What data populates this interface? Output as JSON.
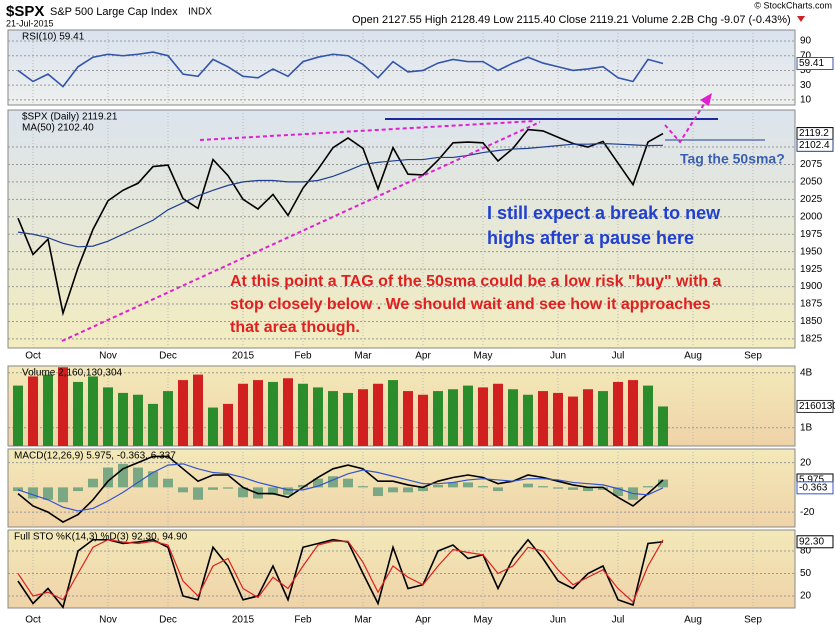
{
  "header": {
    "symbol": "$SPX",
    "name": "S&P 500 Large Cap Index",
    "exchange": "INDX",
    "date": "21-Jul-2015",
    "quote": "Open 2127.55 High 2128.49 Low 2115.40 Close 2119.21 Volume 2.2B Chg -9.07 (-0.43%)",
    "credit": "© StockCharts.com"
  },
  "annotations": {
    "tag": "Tag the 50sma?",
    "expect": [
      "I still expect a break to new",
      "highs after a pause here"
    ],
    "note": [
      "At this point a TAG of the 50sma could be a low risk \"buy\" with a",
      "stop closely below .  We should wait and see how it approaches",
      "that area though."
    ]
  },
  "chart_data": [
    {
      "type": "line",
      "ylim": [
        3,
        105
      ],
      "yticks": [
        10,
        30,
        50,
        70,
        90
      ],
      "grid": true,
      "series": [
        {
          "name": "RSI(10) 59.41",
          "color": "#3355aa",
          "last_label": "59.41",
          "values": [
            50,
            35,
            45,
            28,
            55,
            68,
            72,
            70,
            72,
            75,
            70,
            45,
            42,
            65,
            55,
            42,
            40,
            52,
            42,
            62,
            68,
            72,
            70,
            58,
            40,
            62,
            48,
            50,
            60,
            65,
            62,
            62,
            50,
            60,
            68,
            60,
            55,
            50,
            52,
            55,
            40,
            35,
            65,
            59.41,
            null,
            null,
            null,
            null,
            null,
            null,
            null
          ]
        }
      ]
    },
    {
      "type": "line",
      "ylim": [
        1812,
        2153
      ],
      "yticks": [
        1825,
        1850,
        1875,
        1900,
        1925,
        1950,
        1975,
        2000,
        2025,
        2050,
        2075,
        2100
      ],
      "grid": true,
      "categories": [
        null,
        "Oct",
        null,
        null,
        null,
        null,
        "Nov",
        null,
        null,
        null,
        "Dec",
        null,
        null,
        null,
        null,
        "2015",
        null,
        null,
        null,
        "Feb",
        null,
        null,
        null,
        "Mar",
        null,
        null,
        null,
        "Apr",
        null,
        null,
        null,
        "May",
        null,
        null,
        null,
        null,
        "Jun",
        null,
        null,
        null,
        "Jul",
        null,
        null,
        null,
        null,
        "Aug",
        null,
        null,
        null,
        "Sep",
        null
      ],
      "series": [
        {
          "name": "$SPX (Daily) 2119.21",
          "color": "#000000",
          "last_label": "2119.2",
          "values": [
            1998,
            1946,
            1968,
            1862,
            1927,
            1982,
            2023,
            2038,
            2048,
            2072,
            2074,
            2026,
            2012,
            2082,
            2059,
            2025,
            2011,
            2032,
            2002,
            2041,
            2068,
            2099,
            2113,
            2098,
            2040,
            2099,
            2061,
            2060,
            2081,
            2106,
            2107,
            2106,
            2080,
            2098,
            2125,
            2123,
            2114,
            2105,
            2100,
            2108,
            2077,
            2046,
            2107,
            2119.21,
            null,
            null,
            null,
            null,
            null,
            null,
            null
          ]
        },
        {
          "name": "MA(50) 2102.40",
          "color": "#1f3f8f",
          "last_label": "2102.4",
          "values": [
            1978,
            1975,
            1970,
            1962,
            1957,
            1958,
            1965,
            1975,
            1985,
            1995,
            2010,
            2020,
            2030,
            2038,
            2045,
            2050,
            2052,
            2052,
            2050,
            2050,
            2052,
            2058,
            2066,
            2075,
            2078,
            2080,
            2082,
            2082,
            2085,
            2085,
            2088,
            2092,
            2095,
            2097,
            2098,
            2100,
            2102,
            2104,
            2104,
            2105,
            2104,
            2103,
            2102,
            2102.4,
            null,
            null,
            null,
            null,
            null,
            null,
            null
          ]
        }
      ]
    },
    {
      "type": "bar",
      "ylim": [
        0,
        4370000000
      ],
      "yticks": [
        {
          "value": 1000000000,
          "label": "1B"
        },
        {
          "value": 4000000000,
          "label": "4B"
        }
      ],
      "grid": true,
      "up_color": "#2a8c2a",
      "down_color": "#d02020",
      "series": [
        {
          "name": "Volume 2,160,130,304",
          "last_label": "2160130",
          "values": [
            3300000000,
            3800000000,
            3900000000,
            4300000000,
            3500000000,
            3800000000,
            3200000000,
            2900000000,
            2800000000,
            2300000000,
            3000000000,
            3600000000,
            3900000000,
            2100000000,
            2300000000,
            3400000000,
            3600000000,
            3500000000,
            3700000000,
            3400000000,
            3200000000,
            3000000000,
            2900000000,
            3100000000,
            3400000000,
            3600000000,
            3000000000,
            2800000000,
            3000000000,
            3100000000,
            3300000000,
            3200000000,
            3400000000,
            3100000000,
            2800000000,
            3000000000,
            2900000000,
            2700000000,
            3100000000,
            3000000000,
            3500000000,
            3600000000,
            3300000000,
            2160130304,
            null,
            null,
            null,
            null,
            null,
            null,
            null
          ]
        }
      ]
    },
    {
      "type": "line",
      "ylim": [
        -32,
        31
      ],
      "yticks": [
        -20,
        20
      ],
      "grid": true,
      "legend": "MACD(12,26,9) 5.975, -0.363, 6.337",
      "series": [
        {
          "color": "#7aa884",
          "style": "histogram",
          "values": [
            -3,
            -9,
            -10,
            -12,
            -3,
            7,
            16,
            19,
            16,
            13,
            7,
            -4,
            -10,
            -2,
            -1,
            -8,
            -9,
            -6,
            -6,
            2,
            7,
            9,
            7,
            1,
            -7,
            -4,
            -4,
            -3,
            2,
            4,
            4,
            1,
            -3,
            0,
            3,
            1,
            -1,
            -2,
            -3,
            -2,
            -7,
            -10,
            1,
            6.337,
            null,
            null,
            null,
            null,
            null,
            null,
            null
          ]
        },
        {
          "color": "#000000",
          "last_label": "5.975",
          "values": [
            -5,
            -15,
            -20,
            -28,
            -22,
            -10,
            5,
            15,
            20,
            25,
            25,
            15,
            5,
            10,
            10,
            0,
            -5,
            -5,
            -8,
            0,
            8,
            15,
            18,
            15,
            5,
            5,
            2,
            0,
            5,
            8,
            10,
            8,
            3,
            5,
            10,
            8,
            5,
            2,
            0,
            0,
            -8,
            -15,
            -5,
            5.975,
            null,
            null,
            null,
            null,
            null,
            null,
            null
          ]
        },
        {
          "color": "#3355cc",
          "last_label": "-0.363",
          "values": [
            -2,
            -6,
            -10,
            -16,
            -19,
            -17,
            -11,
            -4,
            4,
            12,
            18,
            19,
            15,
            12,
            11,
            8,
            4,
            1,
            -2,
            -2,
            1,
            6,
            11,
            14,
            12,
            9,
            6,
            3,
            3,
            4,
            6,
            7,
            6,
            5,
            7,
            7,
            6,
            4,
            3,
            2,
            -1,
            -5,
            -6,
            -0.363,
            null,
            null,
            null,
            null,
            null,
            null,
            null
          ]
        }
      ]
    },
    {
      "type": "line",
      "ylim": [
        4,
        108
      ],
      "yticks": [
        20,
        50,
        80
      ],
      "grid": true,
      "legend": "Full STO %K(14,3) %D(3) 92.30, 94.90",
      "series": [
        {
          "color": "#000000",
          "last_label": "92.30",
          "values": [
            40,
            10,
            30,
            5,
            80,
            95,
            95,
            90,
            92,
            95,
            85,
            20,
            15,
            85,
            60,
            15,
            20,
            60,
            15,
            85,
            90,
            95,
            92,
            50,
            10,
            85,
            30,
            35,
            80,
            88,
            70,
            75,
            30,
            70,
            95,
            70,
            40,
            30,
            50,
            60,
            15,
            8,
            90,
            92.3,
            null,
            null,
            null,
            null,
            null,
            null,
            null
          ]
        },
        {
          "color": "#dd2020",
          "values": [
            50,
            20,
            25,
            15,
            50,
            85,
            95,
            92,
            90,
            93,
            88,
            40,
            20,
            60,
            70,
            30,
            18,
            45,
            30,
            60,
            88,
            93,
            93,
            65,
            25,
            60,
            45,
            35,
            60,
            82,
            78,
            75,
            50,
            60,
            85,
            80,
            55,
            35,
            45,
            55,
            30,
            12,
            60,
            94.9,
            null,
            null,
            null,
            null,
            null,
            null,
            null
          ]
        }
      ]
    }
  ]
}
